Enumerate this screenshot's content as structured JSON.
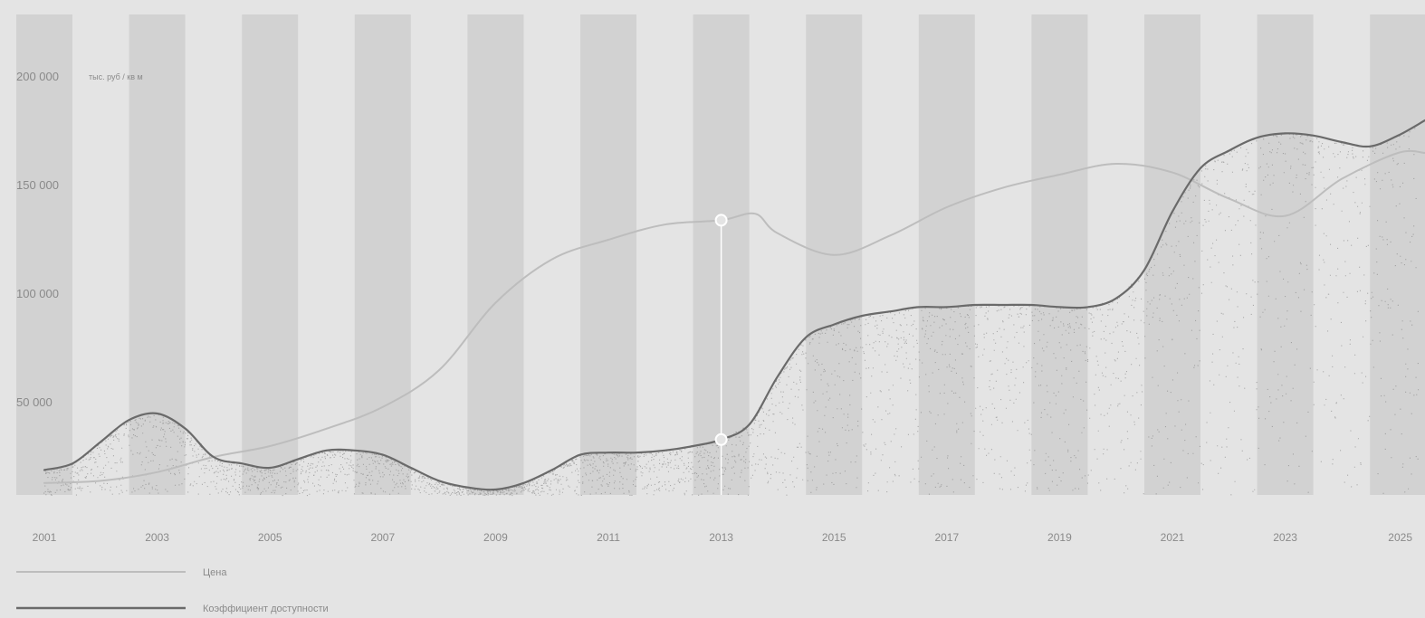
{
  "chart_data": {
    "type": "line",
    "ylabel": "тыс. руб / кв м",
    "ylim": [
      0,
      220000
    ],
    "yticks": [
      {
        "value": 50000,
        "label": "50 000"
      },
      {
        "value": 100000,
        "label": "100 000"
      },
      {
        "value": 150000,
        "label": "150 000"
      },
      {
        "value": 200000,
        "label": "200 000"
      }
    ],
    "x_labels": [
      "2001",
      "2003",
      "2005",
      "2007",
      "2009",
      "2011",
      "2013",
      "2015",
      "2017",
      "2019",
      "2021",
      "2023",
      "2025"
    ],
    "xlim": [
      2001,
      2025.5
    ],
    "grid": "vertical bands",
    "highlight_year": 2013,
    "series": [
      {
        "name": "Цена",
        "color": "#bdbdbd",
        "x": [
          2001,
          2002,
          2003,
          2004,
          2005,
          2006,
          2007,
          2008,
          2009,
          2010,
          2011,
          2012,
          2013,
          2013.6,
          2014,
          2015,
          2016,
          2017,
          2018,
          2019,
          2020,
          2021,
          2022,
          2023,
          2024,
          2025,
          2025.5
        ],
        "y": [
          13000,
          14000,
          18000,
          25000,
          30000,
          38000,
          48000,
          65000,
          96000,
          116000,
          125000,
          132000,
          134000,
          137000,
          128000,
          118000,
          127000,
          140000,
          149000,
          155000,
          160000,
          156000,
          144000,
          136000,
          153000,
          165000,
          165000
        ]
      },
      {
        "name": "Коэффициент доступности",
        "color": "#6a6a6a",
        "x": [
          2001,
          2001.5,
          2002,
          2002.5,
          2003,
          2003.5,
          2004,
          2004.5,
          2005,
          2005.5,
          2006,
          2006.5,
          2007,
          2007.5,
          2008,
          2008.5,
          2009,
          2009.5,
          2010,
          2010.5,
          2011,
          2011.5,
          2012,
          2012.5,
          2013,
          2013.5,
          2014,
          2014.5,
          2015,
          2015.5,
          2016,
          2016.5,
          2017,
          2017.5,
          2018,
          2018.5,
          2019,
          2019.5,
          2020,
          2020.5,
          2021,
          2021.5,
          2022,
          2022.5,
          2023,
          2023.5,
          2024,
          2024.5,
          2025,
          2025.5
        ],
        "y": [
          19000,
          22000,
          32000,
          42000,
          45000,
          38000,
          25000,
          22000,
          20000,
          24000,
          28000,
          28000,
          26000,
          20000,
          14000,
          11000,
          10000,
          13000,
          19000,
          26000,
          27000,
          27000,
          28000,
          30000,
          33000,
          40000,
          62000,
          80000,
          86000,
          90000,
          92000,
          94000,
          94000,
          95000,
          95000,
          95000,
          94000,
          94000,
          98000,
          111000,
          138000,
          158000,
          166000,
          172000,
          174000,
          173000,
          170000,
          168000,
          173000,
          180000
        ]
      }
    ],
    "legend": [
      {
        "label": "Цена",
        "color": "#bdbdbd"
      },
      {
        "label": "Коэффициент доступности",
        "color": "#6a6a6a"
      }
    ],
    "colors": {
      "background": "#e4e4e4",
      "band": "#d2d2d2",
      "highlight": "#ffffff",
      "tick_text": "#8a8a8a"
    }
  }
}
